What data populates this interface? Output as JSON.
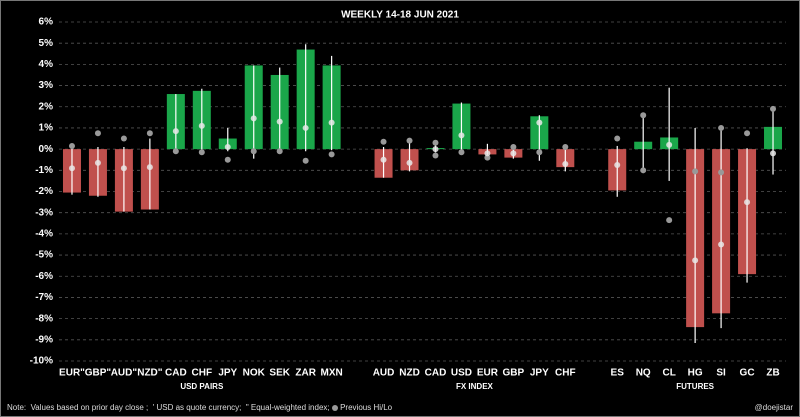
{
  "chart_data": {
    "type": "bar",
    "title": "WEEKLY  14-18 JUN 2021",
    "categories": [
      "EUR\"",
      "GBP\"",
      "AUD\"",
      "NZD\"",
      "CAD",
      "CHF",
      "JPY",
      "NOK",
      "SEK",
      "ZAR",
      "MXN",
      null,
      "AUD",
      "NZD",
      "CAD",
      "USD",
      "EUR",
      "GBP",
      "JPY",
      "CHF",
      null,
      "ES",
      "NQ",
      "CL",
      "HG",
      "SI",
      "GC",
      "ZB"
    ],
    "groups": [
      "USD PAIRS",
      "FX INDEX",
      "FUTURES"
    ],
    "values": [
      -2.05,
      -2.2,
      -2.95,
      -2.85,
      2.6,
      2.75,
      0.5,
      3.95,
      3.5,
      4.7,
      3.95,
      null,
      -1.35,
      -1.0,
      0.05,
      2.15,
      -0.25,
      -0.4,
      1.55,
      -0.85,
      null,
      -1.95,
      0.35,
      0.55,
      -8.4,
      -7.75,
      -5.9,
      1.05
    ],
    "high": [
      0.25,
      0.1,
      0.1,
      0.5,
      2.6,
      2.85,
      1.0,
      3.95,
      3.85,
      4.95,
      4.4,
      null,
      0.1,
      0.3,
      0.4,
      2.2,
      0.25,
      0.1,
      1.6,
      0.1,
      null,
      0.15,
      1.5,
      2.9,
      1.0,
      1.0,
      0.05,
      1.9
    ],
    "low": [
      -2.15,
      -2.25,
      -2.95,
      -2.85,
      -0.1,
      -0.1,
      -0.1,
      -0.45,
      -0.15,
      -0.1,
      -0.05,
      null,
      -1.35,
      -1.05,
      -0.15,
      -0.1,
      -0.3,
      -0.45,
      -0.55,
      -1.05,
      null,
      -2.25,
      -1.0,
      -1.5,
      -9.15,
      -8.45,
      -6.3,
      -1.2
    ],
    "close_dots": [
      -0.9,
      -0.65,
      -0.9,
      -0.85,
      0.85,
      1.1,
      0.1,
      1.45,
      1.3,
      1.0,
      1.25,
      null,
      -0.5,
      -0.65,
      0.0,
      0.65,
      -0.2,
      -0.2,
      1.25,
      -0.7,
      null,
      -0.75,
      null,
      0.2,
      -5.25,
      -4.5,
      -2.5,
      -0.2
    ],
    "prev_hi": [
      0.15,
      0.75,
      0.5,
      0.75,
      null,
      null,
      null,
      null,
      null,
      null,
      null,
      null,
      0.35,
      0.4,
      0.3,
      null,
      null,
      0.1,
      null,
      0.1,
      null,
      0.5,
      1.6,
      null,
      null,
      1.0,
      0.75,
      1.9
    ],
    "prev_lo": [
      null,
      null,
      null,
      null,
      -0.1,
      -0.15,
      -0.5,
      -0.1,
      -0.1,
      -0.55,
      -0.25,
      null,
      null,
      null,
      -0.3,
      -0.15,
      -0.4,
      null,
      -0.15,
      null,
      null,
      null,
      -1.0,
      -3.35,
      -1.05,
      -1.1,
      null,
      null
    ],
    "up_color": "#1aa64a",
    "down_color": "#c0504d",
    "ylim": [
      -10,
      6
    ],
    "yticks": [
      {
        "value": -10,
        "label": "-10%"
      },
      {
        "value": -9,
        "label": "-9%"
      },
      {
        "value": -8,
        "label": "-8%"
      },
      {
        "value": -7,
        "label": "-7%"
      },
      {
        "value": -6,
        "label": "-6%"
      },
      {
        "value": -5,
        "label": "-5%"
      },
      {
        "value": -4,
        "label": "-4%"
      },
      {
        "value": -3,
        "label": "-3%"
      },
      {
        "value": -2,
        "label": "-2%"
      },
      {
        "value": -1,
        "label": "-1%"
      },
      {
        "value": 0,
        "label": "0%"
      },
      {
        "value": 1,
        "label": "1%"
      },
      {
        "value": 2,
        "label": "2%"
      },
      {
        "value": 3,
        "label": "3%"
      },
      {
        "value": 4,
        "label": "4%"
      },
      {
        "value": 5,
        "label": "5%"
      },
      {
        "value": 6,
        "label": "6%"
      }
    ],
    "grid": true,
    "note": "Note:  Values based on prior day close ;  ' USD as quote currency;  \" Equal-weighted index;",
    "legend_label": "Previous Hi/Lo",
    "credit": "@doejistar"
  }
}
